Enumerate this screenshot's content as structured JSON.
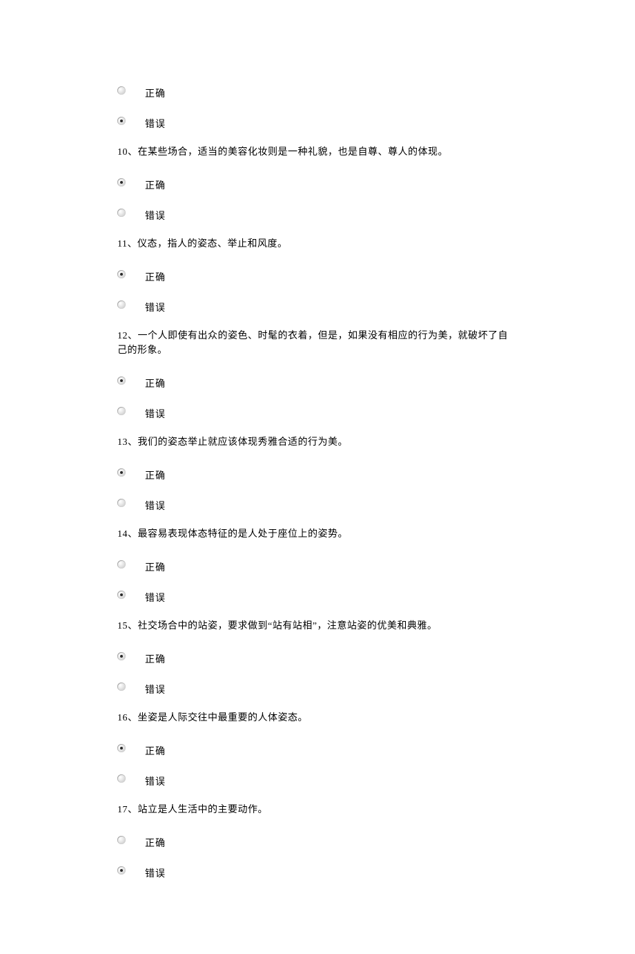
{
  "labels": {
    "correct": "正确",
    "wrong": "错误"
  },
  "questions": [
    {
      "number": "",
      "text": "",
      "selected": "wrong",
      "show_text": false
    },
    {
      "number": "10",
      "text": "、在某些场合，适当的美容化妆则是一种礼貌，也是自尊、尊人的体现。",
      "selected": "correct",
      "show_text": true
    },
    {
      "number": "11",
      "text": "、仪态，指人的姿态、举止和风度。",
      "selected": "correct",
      "show_text": true
    },
    {
      "number": "12",
      "text": "、一个人即使有出众的姿色、时髦的衣着，但是，如果没有相应的行为美，就破坏了自己的形象。",
      "selected": "correct",
      "show_text": true
    },
    {
      "number": "13",
      "text": "、我们的姿态举止就应该体现秀雅合适的行为美。",
      "selected": "correct",
      "show_text": true
    },
    {
      "number": "14",
      "text": "、最容易表现体态特征的是人处于座位上的姿势。",
      "selected": "wrong",
      "show_text": true
    },
    {
      "number": "15",
      "text": "、社交场合中的站姿，要求做到“站有站相”，注意站姿的优美和典雅。",
      "selected": "correct",
      "show_text": true
    },
    {
      "number": "16",
      "text": "、坐姿是人际交往中最重要的人体姿态。",
      "selected": "correct",
      "show_text": true
    },
    {
      "number": "17",
      "text": "、站立是人生活中的主要动作。",
      "selected": "wrong",
      "show_text": true
    }
  ]
}
